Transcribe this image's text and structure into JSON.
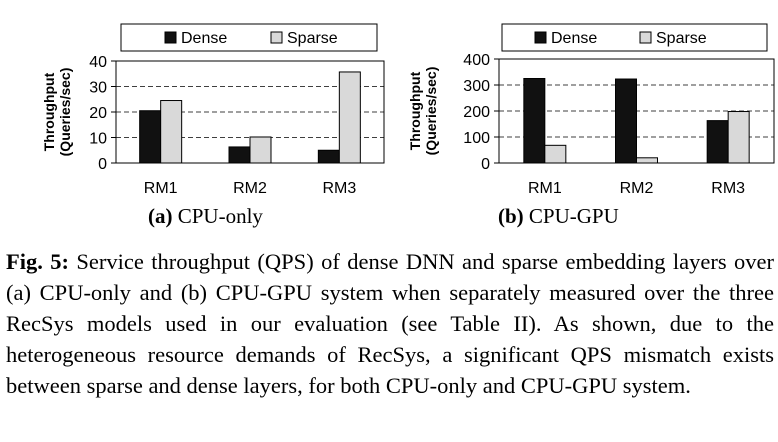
{
  "chart_data": [
    {
      "type": "bar",
      "categories": [
        "RM1",
        "RM2",
        "RM3"
      ],
      "series": [
        {
          "name": "Dense",
          "values": [
            20.5,
            6.3,
            5.0
          ],
          "color": "#111111"
        },
        {
          "name": "Sparse",
          "values": [
            24.5,
            10.2,
            35.7
          ],
          "color": "#d9d9d9"
        }
      ],
      "ylabel": "Throughput (Queries/sec)",
      "ylabel_line1": "Throughput",
      "ylabel_line2": "(Queries/sec)",
      "ylim": [
        0,
        40
      ],
      "yticks": [
        0,
        10,
        20,
        30,
        40
      ],
      "grid": "dashed-horizontal",
      "legend": "top",
      "subcaption_label": "(a)",
      "subcaption_text": "CPU-only"
    },
    {
      "type": "bar",
      "categories": [
        "RM1",
        "RM2",
        "RM3"
      ],
      "series": [
        {
          "name": "Dense",
          "values": [
            325,
            323,
            163
          ],
          "color": "#111111"
        },
        {
          "name": "Sparse",
          "values": [
            68,
            20,
            198
          ],
          "color": "#d9d9d9"
        }
      ],
      "ylabel": "Throughput (Queries/sec)",
      "ylabel_line1": "Throughput",
      "ylabel_line2": "(Queries/sec)",
      "ylim": [
        0,
        400
      ],
      "yticks": [
        0,
        100,
        200,
        300,
        400
      ],
      "grid": "dashed-horizontal",
      "legend": "top",
      "subcaption_label": "(b)",
      "subcaption_text": "CPU-GPU"
    }
  ],
  "caption": {
    "label": "Fig. 5:",
    "text": "Service throughput (QPS) of dense DNN and sparse embedding layers over (a) CPU-only and (b) CPU-GPU system when separately measured over the three RecSys models used in our evaluation (see Table II). As shown, due to the heterogeneous resource demands of RecSys, a significant QPS mismatch exists between sparse and dense layers, for both CPU-only and CPU-GPU system."
  }
}
